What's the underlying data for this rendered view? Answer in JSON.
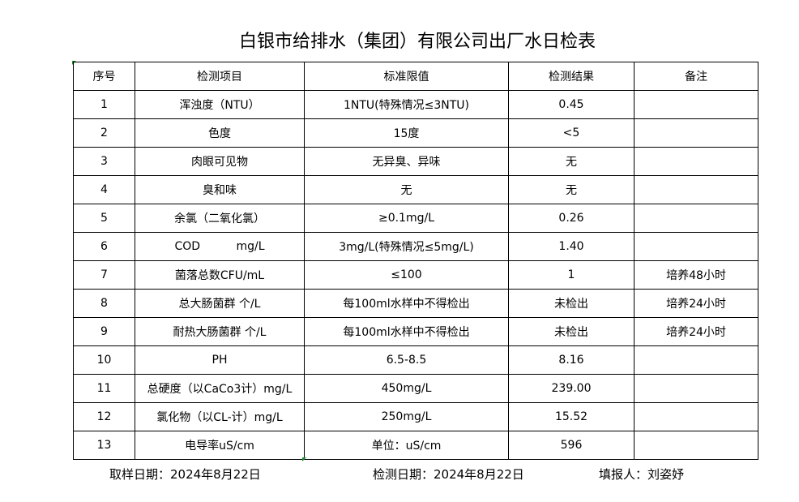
{
  "title": "白银市给排水（集团）有限公司出厂水日检表",
  "headers": [
    "序号",
    "检测项目",
    "标准限值",
    "检测结果",
    "备注"
  ],
  "rows": [
    [
      "1",
      "浑浊度（NTU）",
      "1NTU(特殊情况≤3NTU)",
      "0.45",
      ""
    ],
    [
      "2",
      "色度",
      "15度",
      "<5",
      ""
    ],
    [
      "3",
      "肉眼可见物",
      "无异臭、异味",
      "无",
      ""
    ],
    [
      "4",
      "臭和味",
      "无",
      "无",
      ""
    ],
    [
      "5",
      "余氯（二氧化氯）",
      "≥0.1mg/L",
      "0.26",
      ""
    ],
    [
      "6",
      "COD          mg/L",
      "3mg/L(特殊情况≤5mg/L)",
      "1.40",
      ""
    ],
    [
      "7",
      "菌落总数CFU/mL",
      "≤100",
      "1",
      "培养48小时"
    ],
    [
      "8",
      "总大肠菌群 个/L",
      "每100ml水样中不得检出",
      "未检出",
      "培养24小时"
    ],
    [
      "9",
      "耐热大肠菌群 个/L",
      "每100ml水样中不得检出",
      "未检出",
      "培养24小时"
    ],
    [
      "10",
      "PH",
      "6.5-8.5",
      "8.16",
      ""
    ],
    [
      "11",
      "总硬度（以CaCo3计）mg/L",
      "450mg/L",
      "239.00",
      ""
    ],
    [
      "12",
      "氯化物（以CL-计）mg/L",
      "250mg/L",
      "15.52",
      ""
    ],
    [
      "13",
      "电导率uS/cm",
      "单位：uS/cm",
      "596",
      ""
    ]
  ],
  "footer": {
    "sampling_date": "取样日期：2024年8月22日",
    "test_date": "检测日期：2024年8月22日",
    "filled_by": "填报人：刘姿妤"
  }
}
